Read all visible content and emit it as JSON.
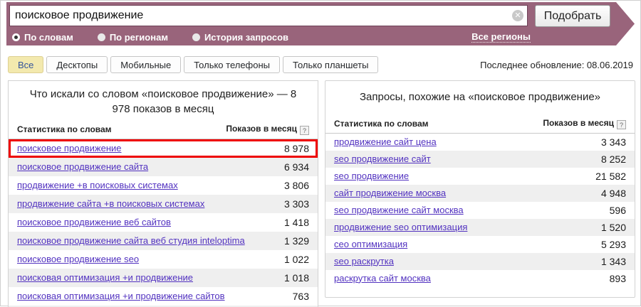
{
  "topbar": {
    "search": {
      "value": "поисковое продвижение",
      "clear_icon": "✕"
    },
    "submit_label": "Подобрать",
    "mode_tabs": [
      {
        "label": "По словам",
        "selected": true
      },
      {
        "label": "По регионам",
        "selected": false
      },
      {
        "label": "История запросов",
        "selected": false
      }
    ],
    "all_regions_label": "Все регионы",
    "bg_color": "#99647b"
  },
  "device_filter": {
    "tabs": [
      {
        "label": "Все",
        "selected": true
      },
      {
        "label": "Десктопы",
        "selected": false
      },
      {
        "label": "Мобильные",
        "selected": false
      },
      {
        "label": "Только телефоны",
        "selected": false
      },
      {
        "label": "Только планшеты",
        "selected": false
      }
    ]
  },
  "last_update": {
    "label": "Последнее обновление:",
    "date": "08.06.2019",
    "full": "Последнее обновление: 08.06.2019"
  },
  "columns": {
    "words": "Статистика по словам",
    "impressions": "Показов в месяц",
    "help_glyph": "?"
  },
  "left_panel": {
    "title": "Что искали со словом «поисковое продвижение» — 8 978 показов в месяц",
    "rows": [
      {
        "phrase": "поисковое продвижение",
        "count": "8 978",
        "highlighted": true
      },
      {
        "phrase": "поисковое продвижение сайта",
        "count": "6 934"
      },
      {
        "phrase": "продвижение +в поисковых системах",
        "count": "3 806"
      },
      {
        "phrase": "продвижение сайта +в поисковых системах",
        "count": "3 303"
      },
      {
        "phrase": "поисковое продвижение веб сайтов",
        "count": "1 418"
      },
      {
        "phrase": "поисковое продвижение сайта веб студия inteloptima",
        "count": "1 329"
      },
      {
        "phrase": "поисковое продвижение seo",
        "count": "1 022"
      },
      {
        "phrase": "поисковая оптимизация +и продвижение",
        "count": "1 018"
      },
      {
        "phrase": "поисковая оптимизация +и продвижение сайтов",
        "count": "763"
      }
    ]
  },
  "right_panel": {
    "title": "Запросы, похожие на «поисковое продвижение»",
    "rows": [
      {
        "phrase": "продвижение сайт цена",
        "count": "3 343"
      },
      {
        "phrase": "seo продвижение сайт",
        "count": "8 252"
      },
      {
        "phrase": "seo продвижение",
        "count": "21 582"
      },
      {
        "phrase": "сайт продвижение москва",
        "count": "4 948"
      },
      {
        "phrase": "seo продвижение сайт москва",
        "count": "596"
      },
      {
        "phrase": "продвижение seo оптимизация",
        "count": "1 520"
      },
      {
        "phrase": "сео оптимизация",
        "count": "5 293"
      },
      {
        "phrase": "seo раскрутка",
        "count": "1 343"
      },
      {
        "phrase": "раскрутка сайт москва",
        "count": "893"
      }
    ]
  },
  "colors": {
    "topbar_bg": "#99647b",
    "link": "#5232c0",
    "row_alt_bg": "#efefef",
    "highlight_border": "#ee0000",
    "selected_tab_bg": "#f3e9ae",
    "selected_tab_text": "#33549c"
  }
}
